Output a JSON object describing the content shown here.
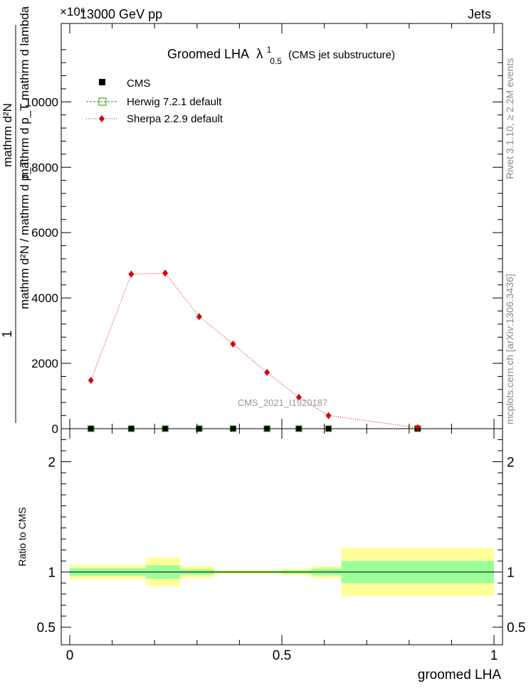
{
  "header": {
    "left": "13000 GeV pp",
    "right": "Jets",
    "exponent": "×10⁶",
    "watermark": "CMS_2021_I1920187"
  },
  "side_text": {
    "top": "Rivet 3.1.10, ≥ 2.2M events",
    "bottom": "mcplots.cern.ch [arXiv:1306.3436]"
  },
  "chart_data": [
    {
      "type": "scatter",
      "title": "Groomed LHA",
      "title_symbol": "λ",
      "title_sup": "1",
      "title_sub": "0.5",
      "title_suffix": "(CMS jet substructure)",
      "ylabel_numerator": "1",
      "ylabel_denominator": "mathrm d²N / mathrm d p_T",
      "ylabel_top_num": "mathrm d²N",
      "ylabel_top_den": "mathrm d p_T mathrm d lambda",
      "xlim": [
        0,
        1
      ],
      "ylim": [
        0,
        12400
      ],
      "yticks": [
        {
          "v": 0,
          "label": "0"
        },
        {
          "v": 2000,
          "label": "2000"
        },
        {
          "v": 4000,
          "label": "4000"
        },
        {
          "v": 6000,
          "label": "6000"
        },
        {
          "v": 8000,
          "label": "8000"
        },
        {
          "v": 10000,
          "label": "10000"
        }
      ],
      "legend_position": "top-left",
      "series": [
        {
          "name": "CMS",
          "color": "#000000",
          "marker": "square-filled",
          "x": [
            0.05,
            0.145,
            0.225,
            0.305,
            0.385,
            0.465,
            0.54,
            0.61,
            0.82
          ],
          "y": [
            0,
            0,
            0,
            0,
            0,
            0,
            0,
            0,
            0
          ]
        },
        {
          "name": "Herwig 7.2.1 default",
          "color": "#2e8b00",
          "marker": "square-open",
          "x": [
            0.05,
            0.145,
            0.225,
            0.305,
            0.385,
            0.465,
            0.54,
            0.61,
            0.82
          ],
          "y": [
            0,
            0,
            0,
            0,
            0,
            0,
            0,
            0,
            0
          ]
        },
        {
          "name": "Sherpa 2.2.9 default",
          "color": "#dd0000",
          "marker": "diamond",
          "x": [
            0.05,
            0.145,
            0.225,
            0.305,
            0.385,
            0.465,
            0.54,
            0.61,
            0.82
          ],
          "y": [
            1480,
            4730,
            4760,
            3430,
            2590,
            1720,
            960,
            400,
            30
          ]
        }
      ]
    },
    {
      "type": "area",
      "ylabel": "Ratio to CMS",
      "xlabel": "groomed LHA",
      "xlim": [
        0,
        1
      ],
      "ylim": [
        0.34,
        2.3
      ],
      "xticks": [
        {
          "v": 0,
          "label": "0"
        },
        {
          "v": 0.5,
          "label": "0.5"
        },
        {
          "v": 1,
          "label": "1"
        }
      ],
      "yticks": [
        {
          "v": 0.5,
          "label": "0.5"
        },
        {
          "v": 1,
          "label": "1"
        },
        {
          "v": 2,
          "label": "2"
        }
      ],
      "bands": [
        {
          "x0": 0.0,
          "x1": 0.18,
          "green": [
            0.965,
            1.035
          ],
          "yellow": [
            0.935,
            1.065
          ]
        },
        {
          "x0": 0.18,
          "x1": 0.26,
          "green": [
            0.94,
            1.06
          ],
          "yellow": [
            0.87,
            1.13
          ]
        },
        {
          "x0": 0.26,
          "x1": 0.34,
          "green": [
            0.975,
            1.025
          ],
          "yellow": [
            0.945,
            1.055
          ]
        },
        {
          "x0": 0.34,
          "x1": 0.5,
          "green": [
            0.99,
            1.01
          ],
          "yellow": [
            0.98,
            1.02
          ]
        },
        {
          "x0": 0.5,
          "x1": 0.57,
          "green": [
            0.985,
            1.015
          ],
          "yellow": [
            0.97,
            1.03
          ]
        },
        {
          "x0": 0.57,
          "x1": 0.64,
          "green": [
            0.97,
            1.03
          ],
          "yellow": [
            0.945,
            1.055
          ]
        },
        {
          "x0": 0.64,
          "x1": 1.0,
          "green": [
            0.9,
            1.1
          ],
          "yellow": [
            0.78,
            1.22
          ]
        }
      ],
      "band_colors": {
        "green": "#99ff99",
        "yellow": "#ffff99"
      }
    }
  ]
}
